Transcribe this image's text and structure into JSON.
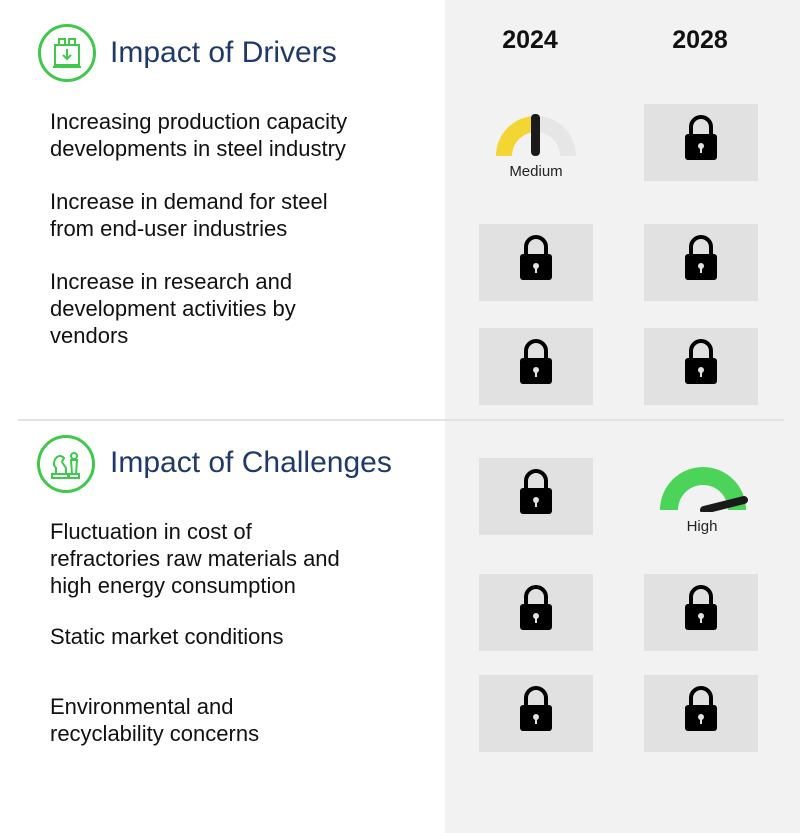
{
  "years": [
    "2024",
    "2028"
  ],
  "drivers": {
    "title": "Impact of Drivers",
    "icon": "factory-icon",
    "items": [
      {
        "label": "Increasing production capacity\ndevelopments in steel industry"
      },
      {
        "label": "Increase in demand for steel\nfrom end-user industries"
      },
      {
        "label": "Increase in research and\ndevelopment activities by\nvendors"
      }
    ]
  },
  "challenges": {
    "title": "Impact of Challenges",
    "icon": "chess-icon",
    "items": [
      {
        "label": "Fluctuation in cost of\nrefractories raw materials and\nhigh energy consumption"
      },
      {
        "label": "Static market conditions"
      },
      {
        "label": "Environmental and\nrecyclability concerns"
      }
    ]
  },
  "gauges": {
    "medium": {
      "label": "Medium",
      "color": "#f3d633"
    },
    "high": {
      "label": "High",
      "color": "#4cd35a"
    }
  },
  "locked_text": "",
  "colors": {
    "accent_green": "#3fc94c",
    "title_blue": "#1f3a68"
  }
}
